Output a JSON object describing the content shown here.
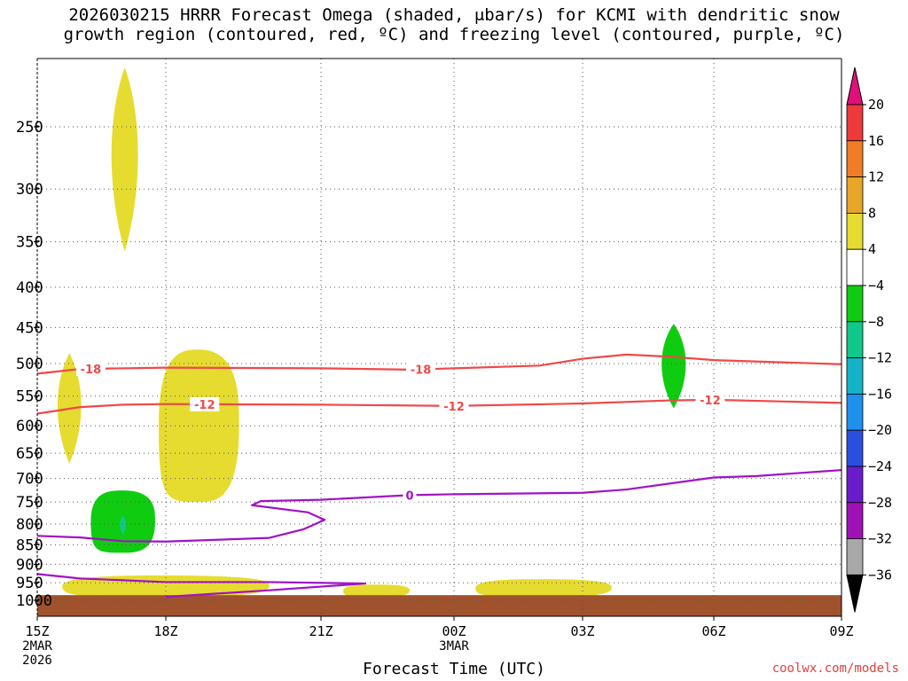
{
  "title_line1": "2026030215 HRRR Forecast Omega (shaded, μbar/s) for KCMI with dendritic snow",
  "title_line2": "growth region (contoured, red, ºC) and freezing level (contoured, purple, ºC)",
  "credit": "coolwx.com/models",
  "chart_data": {
    "type": "time-height cross section",
    "title": "2026030215 HRRR Forecast Omega (shaded, μbar/s) for KCMI with dendritic snow growth region (contoured, red, ºC) and freezing level (contoured, purple, ºC)",
    "xlabel": "Forecast Time (UTC)",
    "ylabel": "",
    "x_ticks": [
      "15Z",
      "18Z",
      "21Z",
      "00Z",
      "03Z",
      "06Z",
      "09Z"
    ],
    "x_tick_sublabels": {
      "15Z": [
        "2MAR",
        "2026"
      ],
      "00Z": [
        "3MAR"
      ]
    },
    "y_ticks": [
      250,
      300,
      350,
      400,
      450,
      500,
      550,
      600,
      650,
      700,
      750,
      800,
      850,
      900,
      950,
      1000
    ],
    "y_axis": "pressure (hPa), decreasing upward",
    "colorbar": {
      "labels": [
        "20",
        "16",
        "12",
        "8",
        "4",
        "−4",
        "−8",
        "−12",
        "−16",
        "−20",
        "−24",
        "−28",
        "−32",
        "−36"
      ],
      "bins": [
        {
          "from": 16,
          "to": 20,
          "color": "#ee3a3a"
        },
        {
          "from": 12,
          "to": 16,
          "color": "#f07d25"
        },
        {
          "from": 8,
          "to": 12,
          "color": "#e7a529"
        },
        {
          "from": 4,
          "to": 8,
          "color": "#e6dc30"
        },
        {
          "from": -4,
          "to": 4,
          "color": "#ffffff"
        },
        {
          "from": -8,
          "to": -4,
          "color": "#10cc10"
        },
        {
          "from": -12,
          "to": -8,
          "color": "#10c88a"
        },
        {
          "from": -16,
          "to": -12,
          "color": "#14b4c8"
        },
        {
          "from": -20,
          "to": -16,
          "color": "#1e90ee"
        },
        {
          "from": -24,
          "to": -20,
          "color": "#2a50e0"
        },
        {
          "from": -28,
          "to": -24,
          "color": "#6a1ccc"
        },
        {
          "from": -32,
          "to": -28,
          "color": "#a012b8"
        },
        {
          "from": -36,
          "to": -32,
          "color": "#a8a8a8"
        }
      ],
      "top_arrow_color": "#e0107a",
      "bottom_arrow_color": "#000000"
    },
    "contours": [
      {
        "label": "-18",
        "color": "#f04848",
        "kind": "dendritic growth region",
        "points": [
          [
            "15Z",
            515
          ],
          [
            "16Z",
            508
          ],
          [
            "18Z",
            506
          ],
          [
            "21Z",
            507
          ],
          [
            "23Z",
            509
          ],
          [
            "00Z",
            507
          ],
          [
            "02Z",
            503
          ],
          [
            "03Z",
            493
          ],
          [
            "04Z",
            487
          ],
          [
            "05Z",
            490
          ],
          [
            "06Z",
            495
          ],
          [
            "09Z",
            501
          ]
        ]
      },
      {
        "label": "-12",
        "color": "#f04848",
        "kind": "dendritic growth region",
        "points": [
          [
            "15Z",
            579
          ],
          [
            "16Z",
            568
          ],
          [
            "17Z",
            564
          ],
          [
            "18Z",
            563
          ],
          [
            "21Z",
            564
          ],
          [
            "00Z",
            566
          ],
          [
            "03Z",
            562
          ],
          [
            "05Z",
            557
          ],
          [
            "06Z",
            556
          ],
          [
            "09Z",
            561
          ]
        ]
      },
      {
        "label": "0",
        "color": "#a012c8",
        "kind": "freezing level",
        "points": [
          [
            "15Z",
            828
          ],
          [
            "16Z",
            832
          ],
          [
            "17Z",
            841
          ],
          [
            "18Z",
            842
          ],
          [
            "20Z",
            833
          ],
          [
            "20:40Z",
            812
          ],
          [
            "21:05Z",
            790
          ],
          [
            "20:45Z",
            773
          ],
          [
            "19:40Z",
            757
          ],
          [
            "19:50Z",
            748
          ],
          [
            "21Z",
            745
          ],
          [
            "23Z",
            735
          ],
          [
            "00Z",
            733
          ],
          [
            "03Z",
            730
          ],
          [
            "04Z",
            723
          ],
          [
            "06Z",
            698
          ],
          [
            "07Z",
            695
          ],
          [
            "09Z",
            683
          ]
        ]
      },
      {
        "label": "",
        "color": "#a012c8",
        "kind": "freezing level (near surface)",
        "points": [
          [
            "15Z",
            926
          ],
          [
            "16Z",
            938
          ],
          [
            "18Z",
            948
          ],
          [
            "20Z",
            948
          ],
          [
            "22Z",
            952
          ],
          [
            "20Z",
            971
          ],
          [
            "18Z",
            990
          ]
        ]
      }
    ],
    "shaded_regions": [
      {
        "bin": "4 to 8",
        "color": "#e6dc30",
        "x_range": [
          "16:40Z",
          "17:25Z"
        ],
        "p_range": [
          210,
          360
        ]
      },
      {
        "bin": "4 to 8",
        "color": "#e6dc30",
        "x_range": [
          "15:25Z",
          "16:05Z"
        ],
        "p_range": [
          485,
          670
        ]
      },
      {
        "bin": "4 to 8",
        "color": "#e6dc30",
        "x_range": [
          "17:50Z",
          "19:25Z"
        ],
        "p_range": [
          480,
          750
        ]
      },
      {
        "bin": "4 to 8",
        "color": "#e6dc30",
        "x_range": [
          "15:35Z",
          "20Z"
        ],
        "p_range": [
          930,
          990
        ]
      },
      {
        "bin": "4 to 8",
        "color": "#e6dc30",
        "x_range": [
          "21:30Z",
          "23Z"
        ],
        "p_range": [
          955,
          990
        ]
      },
      {
        "bin": "4 to 8",
        "color": "#e6dc30",
        "x_range": [
          "00:30Z",
          "03:40Z"
        ],
        "p_range": [
          940,
          990
        ]
      },
      {
        "bin": "-4 to -8",
        "color": "#10cc10",
        "x_range": [
          "16:15Z",
          "17:45Z"
        ],
        "p_range": [
          725,
          870
        ]
      },
      {
        "bin": "-8 to -12",
        "color": "#10c88a",
        "x_range": [
          "16:55Z",
          "17:05Z"
        ],
        "p_range": [
          780,
          825
        ]
      },
      {
        "bin": "-4 to -8",
        "color": "#10cc10",
        "x_range": [
          "04:45Z",
          "05:25Z"
        ],
        "p_range": [
          445,
          570
        ]
      }
    ],
    "terrain": {
      "color": "#a0522d",
      "p_surface": 985
    }
  }
}
